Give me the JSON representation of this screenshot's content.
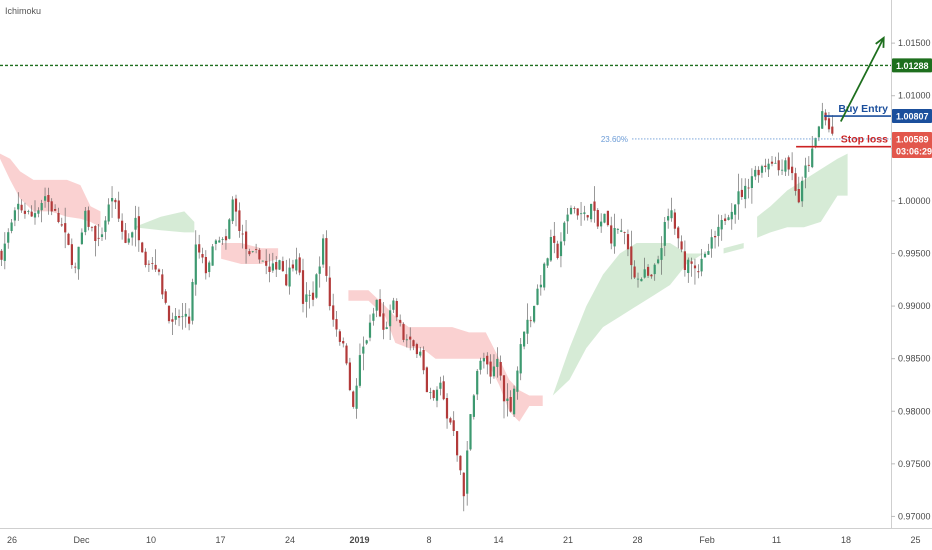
{
  "chart_data": {
    "type": "candlestick",
    "title": "Ichimoku",
    "y_ticks": [
      "0.97000",
      "0.97500",
      "0.98000",
      "0.98500",
      "0.99000",
      "0.99500",
      "1.00000",
      "1.00500",
      "1.01000",
      "1.01500"
    ],
    "ylim": [
      0.9689,
      1.0191
    ],
    "x_ticks": [
      {
        "label": "26",
        "bold": false
      },
      {
        "label": "Dec",
        "bold": false
      },
      {
        "label": "10",
        "bold": false
      },
      {
        "label": "17",
        "bold": false
      },
      {
        "label": "24",
        "bold": false
      },
      {
        "label": "2019",
        "bold": true
      },
      {
        "label": "8",
        "bold": false
      },
      {
        "label": "14",
        "bold": false
      },
      {
        "label": "21",
        "bold": false
      },
      {
        "label": "28",
        "bold": false
      },
      {
        "label": "Feb",
        "bold": false
      },
      {
        "label": "11",
        "bold": false
      },
      {
        "label": "18",
        "bold": false
      },
      {
        "label": "25",
        "bold": false
      }
    ],
    "price_path": [
      [
        0,
        0.995
      ],
      [
        5,
        0.9995
      ],
      [
        9,
        0.9985
      ],
      [
        13,
        1.0005
      ],
      [
        18,
        0.9975
      ],
      [
        22,
        0.9935
      ],
      [
        25,
        0.9985
      ],
      [
        29,
        0.996
      ],
      [
        33,
        1.0005
      ],
      [
        37,
        0.996
      ],
      [
        40,
        0.998
      ],
      [
        43,
        0.9945
      ],
      [
        46,
        0.994
      ],
      [
        48,
        0.9915
      ],
      [
        51,
        0.988
      ],
      [
        53,
        0.989
      ],
      [
        56,
        0.9885
      ],
      [
        58,
        0.9955
      ],
      [
        61,
        0.9935
      ],
      [
        64,
        0.996
      ],
      [
        67,
        0.996
      ],
      [
        69,
        1.0
      ],
      [
        72,
        0.9965
      ],
      [
        74,
        0.9945
      ],
      [
        77,
        0.995
      ],
      [
        80,
        0.993
      ],
      [
        83,
        0.9945
      ],
      [
        85,
        0.9925
      ],
      [
        88,
        0.995
      ],
      [
        90,
        0.9905
      ],
      [
        93,
        0.991
      ],
      [
        96,
        0.996
      ],
      [
        98,
        0.99
      ],
      [
        101,
        0.987
      ],
      [
        103,
        0.985
      ],
      [
        105,
        0.98
      ],
      [
        107,
        0.985
      ],
      [
        110,
        0.988
      ],
      [
        112,
        0.9905
      ],
      [
        114,
        0.9875
      ],
      [
        117,
        0.99
      ],
      [
        120,
        0.987
      ],
      [
        123,
        0.986
      ],
      [
        125,
        0.986
      ],
      [
        127,
        0.9815
      ],
      [
        129,
        0.981
      ],
      [
        131,
        0.9825
      ],
      [
        133,
        0.9795
      ],
      [
        135,
        0.9785
      ],
      [
        137,
        0.974
      ],
      [
        138,
        0.972
      ],
      [
        140,
        0.98
      ],
      [
        142,
        0.984
      ],
      [
        144,
        0.985
      ],
      [
        146,
        0.983
      ],
      [
        148,
        0.985
      ],
      [
        150,
        0.9815
      ],
      [
        152,
        0.9805
      ],
      [
        154,
        0.984
      ],
      [
        156,
        0.988
      ],
      [
        158,
        0.989
      ],
      [
        160,
        0.9915
      ],
      [
        162,
        0.9935
      ],
      [
        164,
        0.996
      ],
      [
        166,
        0.995
      ],
      [
        168,
        0.9975
      ],
      [
        170,
        0.9995
      ],
      [
        172,
        0.999
      ],
      [
        174,
        0.9985
      ],
      [
        176,
        0.9995
      ],
      [
        178,
        0.9975
      ],
      [
        180,
        0.9985
      ],
      [
        182,
        0.9965
      ],
      [
        184,
        0.9975
      ],
      [
        186,
        0.9965
      ],
      [
        188,
        0.994
      ],
      [
        190,
        0.9925
      ],
      [
        192,
        0.993
      ],
      [
        194,
        0.9925
      ],
      [
        196,
        0.9945
      ],
      [
        198,
        0.9975
      ],
      [
        200,
        0.999
      ],
      [
        202,
        0.996
      ],
      [
        204,
        0.994
      ],
      [
        206,
        0.9945
      ],
      [
        208,
        0.9935
      ],
      [
        210,
        0.9945
      ],
      [
        212,
        0.996
      ],
      [
        214,
        0.997
      ],
      [
        216,
        0.9985
      ],
      [
        218,
        0.9995
      ],
      [
        220,
        1.0005
      ],
      [
        222,
        1.001
      ],
      [
        224,
        1.0025
      ],
      [
        226,
        1.003
      ],
      [
        228,
        1.0035
      ],
      [
        230,
        1.004
      ],
      [
        232,
        1.003
      ],
      [
        234,
        1.004
      ],
      [
        236,
        1.0025
      ],
      [
        238,
        1.0
      ],
      [
        240,
        1.003
      ],
      [
        242,
        1.0045
      ],
      [
        244,
        1.007
      ],
      [
        245,
        1.0085
      ],
      [
        246,
        1.0076
      ],
      [
        247,
        1.0068
      ],
      [
        248,
        1.0064
      ]
    ],
    "cloud": {
      "bearish_color": "#f9c9c9",
      "bullish_color": "#cfe8cf",
      "bearish_segments": [
        [
          [
            0,
            1.0045,
            1.004
          ],
          [
            3,
            1.004,
            1.002
          ],
          [
            6,
            1.0028,
            1.0002
          ],
          [
            10,
            1.002,
            0.999
          ],
          [
            15,
            1.002,
            0.999
          ],
          [
            20,
            1.002,
            0.9985
          ],
          [
            24,
            1.0015,
            0.9983
          ],
          [
            27,
            0.9995,
            0.998
          ],
          [
            30,
            0.999,
            0.9975
          ]
        ],
        [
          [
            66,
            0.996,
            0.9945
          ],
          [
            72,
            0.996,
            0.994
          ],
          [
            78,
            0.9955,
            0.994
          ],
          [
            83,
            0.9955,
            0.9945
          ]
        ],
        [
          [
            104,
            0.9915,
            0.9905
          ],
          [
            110,
            0.9915,
            0.9905
          ],
          [
            115,
            0.99,
            0.989
          ],
          [
            118,
            0.989,
            0.9865
          ],
          [
            122,
            0.988,
            0.986
          ],
          [
            126,
            0.988,
            0.986
          ],
          [
            130,
            0.988,
            0.985
          ],
          [
            135,
            0.988,
            0.985
          ],
          [
            140,
            0.9875,
            0.985
          ],
          [
            145,
            0.9875,
            0.985
          ],
          [
            149,
            0.985,
            0.9825
          ],
          [
            152,
            0.983,
            0.98
          ],
          [
            155,
            0.982,
            0.979
          ],
          [
            158,
            0.9815,
            0.9805
          ],
          [
            162,
            0.9815,
            0.9805
          ]
        ]
      ],
      "bullish_segments": [
        [
          [
            40,
            0.9975,
            0.9975
          ],
          [
            48,
            0.9985,
            0.9972
          ],
          [
            55,
            0.999,
            0.997
          ],
          [
            58,
            0.998,
            0.997
          ]
        ],
        [
          [
            165,
            0.9815,
            0.9815
          ],
          [
            170,
            0.986,
            0.983
          ],
          [
            175,
            0.99,
            0.986
          ],
          [
            180,
            0.993,
            0.988
          ],
          [
            185,
            0.995,
            0.989
          ],
          [
            190,
            0.996,
            0.99
          ],
          [
            195,
            0.996,
            0.991
          ],
          [
            200,
            0.996,
            0.992
          ],
          [
            205,
            0.995,
            0.994
          ],
          [
            210,
            0.995,
            0.995
          ]
        ],
        [
          [
            216,
            0.9955,
            0.995
          ],
          [
            222,
            0.996,
            0.9955
          ]
        ],
        [
          [
            226,
            0.9985,
            0.9965
          ],
          [
            230,
            0.9995,
            0.997
          ],
          [
            235,
            1.001,
            0.9975
          ],
          [
            240,
            1.002,
            0.9975
          ],
          [
            245,
            1.003,
            0.998
          ],
          [
            250,
            1.004,
            1.0005
          ],
          [
            253,
            1.0045,
            1.0005
          ]
        ]
      ]
    },
    "levels": [
      {
        "name": "target",
        "value": 1.01288,
        "label": "1.01288",
        "color": "#1e6f1e",
        "style": "dashed"
      },
      {
        "name": "buy-entry",
        "value": 1.00807,
        "label": "1.00807",
        "text": "Buy Entry",
        "color": "#1b4f9c",
        "style": "solid"
      },
      {
        "name": "stop-loss",
        "value": 1.00515,
        "label": "1.00515",
        "text": "Stop loss",
        "color": "#cc2222",
        "style": "solid"
      }
    ],
    "fib": {
      "label": "23.60%",
      "value": 1.00589,
      "color": "#6b9bd6"
    },
    "current_price": {
      "label": "1.00589",
      "countdown": "03:06:29",
      "color": "#e2574c"
    },
    "arrow": {
      "color": "#1e6f1e",
      "from": [
        248,
        1.0085
      ],
      "to": [
        262,
        1.0155
      ]
    }
  }
}
